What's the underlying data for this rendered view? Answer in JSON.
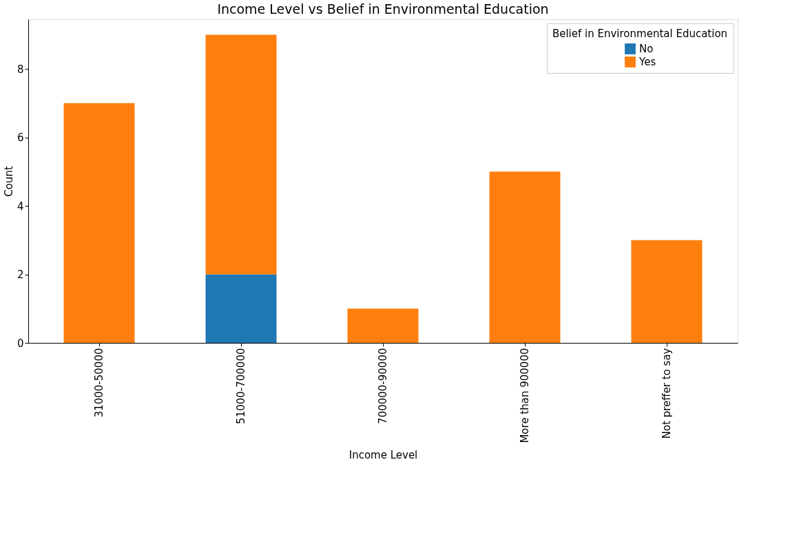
{
  "chart_data": {
    "type": "bar",
    "title": "Income Level vs Belief in Environmental Education",
    "xlabel": "Income Level",
    "ylabel": "Count",
    "legend_title": "Belief in Environmental Education",
    "categories": [
      "31000-50000",
      "51000-700000",
      "700000-90000",
      "More than 900000",
      "Not preffer to say"
    ],
    "series": [
      {
        "name": "No",
        "color": "#1f77b4",
        "values": [
          0,
          2,
          0,
          0,
          0
        ]
      },
      {
        "name": "Yes",
        "color": "#ff7f0e",
        "values": [
          7,
          7,
          1,
          5,
          3
        ]
      }
    ],
    "stacked": true,
    "ylim": [
      0,
      9.45
    ],
    "yticks": [
      0,
      2,
      4,
      6,
      8
    ],
    "grid": false,
    "legend": "top right"
  }
}
